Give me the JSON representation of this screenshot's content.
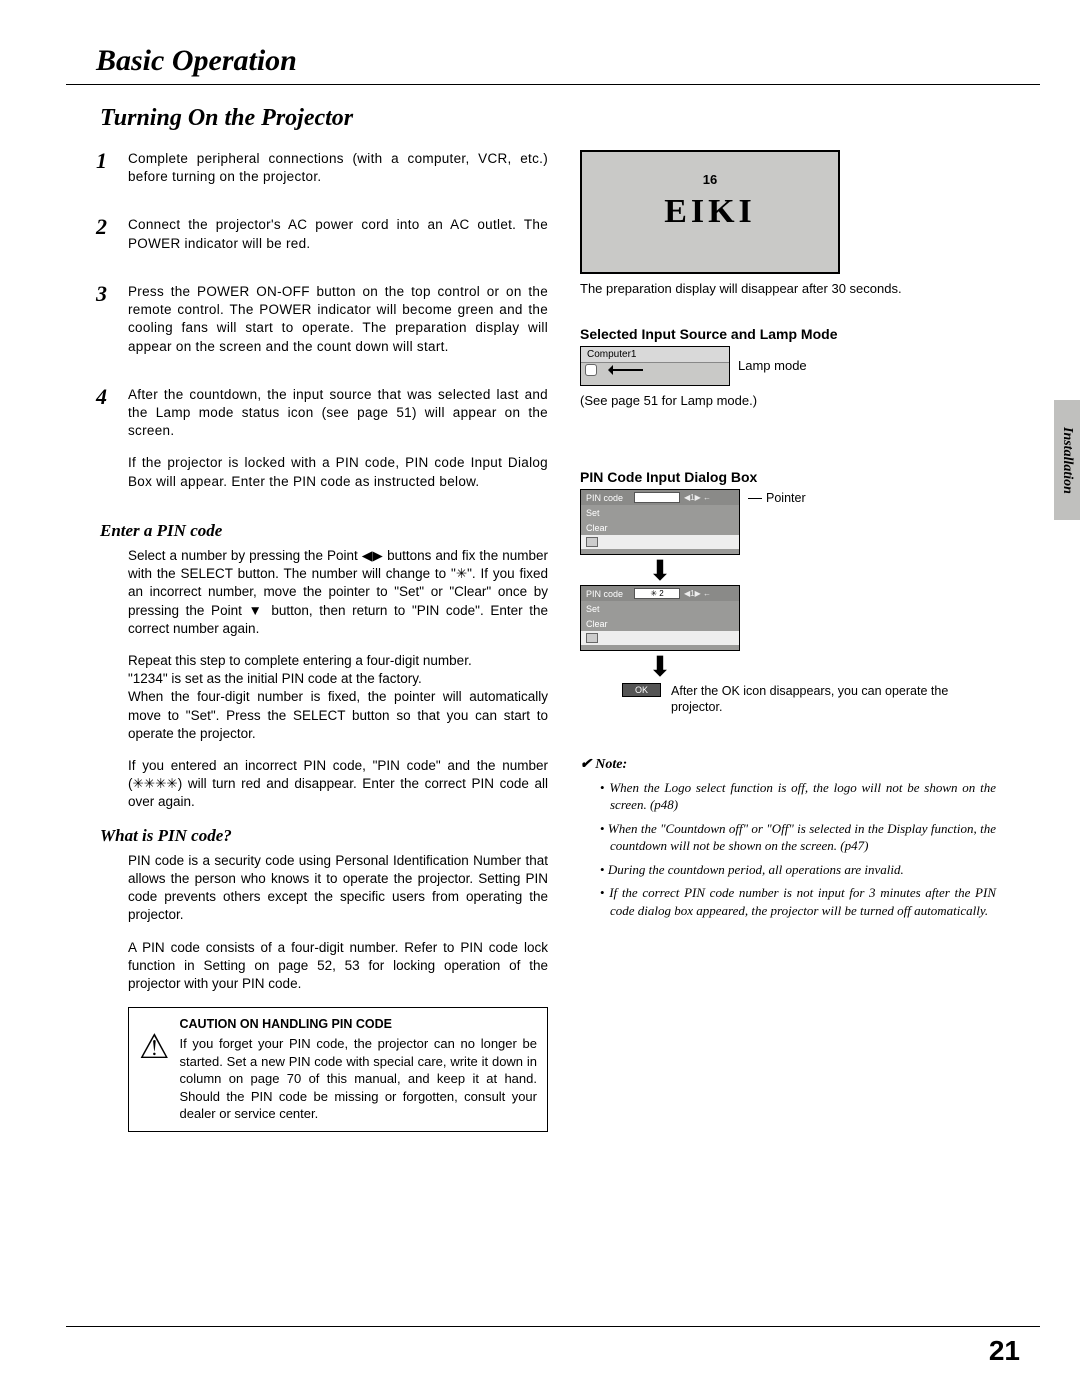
{
  "chapter_title": "Basic Operation",
  "section_title": "Turning On the Projector",
  "side_tab": "Installation",
  "page_number": "21",
  "steps": [
    {
      "num": "1",
      "body": [
        "Complete peripheral connections (with a computer, VCR, etc.) before turning on the projector."
      ]
    },
    {
      "num": "2",
      "body": [
        "Connect the projector's AC power cord into an AC outlet.  The POWER indicator will be red."
      ]
    },
    {
      "num": "3",
      "body": [
        "Press the POWER ON-OFF button on the top control or on the remote control.  The POWER indicator will become green and the cooling fans will start to operate.  The preparation display will appear on the screen and the count down will start."
      ]
    },
    {
      "num": "4",
      "body": [
        "After the countdown, the input source that was selected last and the Lamp mode status icon (see page 51) will appear on the screen.",
        "If the projector is locked with a PIN code, PIN code Input Dialog Box will appear.  Enter the PIN code as instructed below."
      ]
    }
  ],
  "enter_pin": {
    "title": "Enter a PIN code",
    "paragraphs": [
      "Select a number by pressing the Point ◀▶ buttons and fix the number with the SELECT button.  The number will change to \"✳\".  If you fixed an incorrect number, move the pointer to \"Set\" or \"Clear\" once by pressing the Point ▼ button, then return to \"PIN code\".  Enter the correct number again.",
      "Repeat this step to complete entering a four-digit number.",
      "\"1234\" is set as the initial PIN code at the factory.",
      "When the four-digit number is fixed, the pointer will automatically move to \"Set\".  Press the SELECT button so that you can start to operate the projector.",
      "If you entered an incorrect PIN code, \"PIN code\" and the number (✳✳✳✳) will turn red and disappear.  Enter the correct PIN code all over again."
    ]
  },
  "what_is_pin": {
    "title": "What is PIN code?",
    "paragraphs": [
      "PIN code is a security code using Personal Identification Number that allows the person who knows it to operate the projector.  Setting PIN code prevents others except the specific users from operating the projector.",
      "A PIN code consists of a four-digit number.  Refer to PIN code lock function in Setting on page 52, 53 for locking operation of the projector with your PIN code."
    ]
  },
  "caution": {
    "title": "CAUTION ON HANDLING PIN CODE",
    "body": "If you forget your PIN code, the projector can no longer be started.  Set a new PIN code with special care, write it down in column on page 70 of this manual, and keep it at hand.  Should the PIN code be missing or forgotten, consult your dealer or service center."
  },
  "eiki_box": {
    "countdown": "16",
    "logo": "EIKI"
  },
  "prep_caption": "The preparation display will disappear after 30 seconds.",
  "selected_heading": "Selected Input Source and Lamp Mode",
  "source_label": "Computer1",
  "lamp_mode_label": "Lamp mode",
  "lamp_caption": "(See page 51 for Lamp mode.)",
  "pin_dialog_heading": "PIN Code Input Dialog Box",
  "pin_labels": {
    "code": "PIN code",
    "set": "Set",
    "clear": "Clear",
    "value2": "✳ 2"
  },
  "pointer_label": "Pointer",
  "ok_label": "OK",
  "ok_caption": "After the OK icon disappears, you can operate the projector.",
  "note": {
    "title": "✔ Note:",
    "items": [
      "When the Logo select function is off, the logo will not be shown on the screen.  (p48)",
      "When the \"Countdown off\" or \"Off\" is selected in the Display function, the countdown will not be shown on the screen.  (p47)",
      "During the countdown period, all operations are invalid.",
      "If the correct PIN code number is not input for 3 minutes after the PIN code dialog box appeared, the projector will be turned off automatically."
    ]
  }
}
